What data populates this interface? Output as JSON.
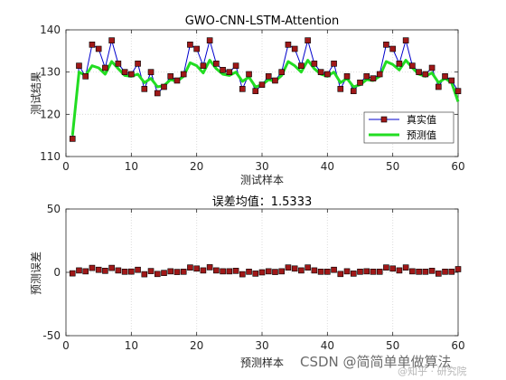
{
  "watermark": {
    "brand": "CSDN @简简单单做算法",
    "faint": "@知乎 · 研究院"
  },
  "chart_data": [
    {
      "type": "line",
      "title": "GWO-CNN-LSTM-Attention",
      "xlabel": "测试样本",
      "ylabel": "测试结果",
      "xlim": [
        0,
        60
      ],
      "ylim": [
        110,
        140
      ],
      "xticks": [
        0,
        10,
        20,
        30,
        40,
        50,
        60
      ],
      "yticks": [
        110,
        120,
        130,
        140
      ],
      "grid": true,
      "legend_position": "lower-right",
      "x": [
        1,
        2,
        3,
        4,
        5,
        6,
        7,
        8,
        9,
        10,
        11,
        12,
        13,
        14,
        15,
        16,
        17,
        18,
        19,
        20,
        21,
        22,
        23,
        24,
        25,
        26,
        27,
        28,
        29,
        30,
        31,
        32,
        33,
        34,
        35,
        36,
        37,
        38,
        39,
        40,
        41,
        42,
        43,
        44,
        45,
        46,
        47,
        48,
        49,
        50,
        51,
        52,
        53,
        54,
        55,
        56,
        57,
        58,
        59,
        60
      ],
      "series": [
        {
          "name": "真实值",
          "color": "#0000cc",
          "marker_face": "#a01818",
          "marker": "square",
          "values": [
            114.2,
            131.5,
            129.0,
            136.5,
            135.5,
            131.0,
            137.5,
            132.0,
            130.0,
            129.5,
            132.0,
            126.0,
            130.0,
            125.0,
            126.5,
            129.0,
            128.0,
            129.5,
            136.5,
            135.5,
            131.5,
            137.5,
            132.0,
            130.5,
            130.0,
            131.5,
            126.0,
            129.5,
            125.5,
            127.0,
            129.0,
            128.0,
            130.0,
            136.5,
            135.5,
            131.5,
            137.5,
            132.0,
            130.0,
            129.5,
            132.0,
            126.0,
            129.0,
            125.5,
            127.5,
            129.0,
            128.5,
            129.5,
            136.5,
            135.5,
            132.0,
            137.5,
            131.5,
            130.0,
            129.5,
            131.0,
            126.5,
            129.0,
            128.0,
            125.5
          ]
        },
        {
          "name": "预测值",
          "color": "#22dd22",
          "values": [
            115.0,
            130.0,
            129.2,
            131.5,
            131.0,
            129.5,
            132.5,
            130.8,
            129.2,
            129.0,
            129.5,
            127.5,
            128.5,
            126.5,
            126.8,
            128.2,
            127.8,
            129.0,
            132.2,
            131.5,
            129.8,
            132.8,
            130.8,
            129.5,
            129.2,
            130.0,
            127.8,
            128.8,
            126.5,
            127.0,
            128.2,
            127.8,
            129.2,
            132.5,
            131.5,
            130.0,
            132.8,
            130.8,
            129.5,
            129.0,
            130.0,
            127.5,
            128.5,
            126.5,
            127.0,
            128.2,
            128.0,
            129.0,
            132.5,
            131.8,
            130.5,
            132.8,
            131.0,
            129.5,
            129.0,
            129.8,
            127.5,
            128.5,
            127.5,
            123.0
          ]
        }
      ]
    },
    {
      "type": "scatter",
      "title": "误差均值：1.5333",
      "xlabel": "预测样本",
      "ylabel": "预测误差",
      "xlim": [
        0,
        60
      ],
      "ylim": [
        -50,
        50
      ],
      "xticks": [
        0,
        10,
        20,
        30,
        40,
        50,
        60
      ],
      "yticks": [
        -50,
        0,
        50
      ],
      "grid": true,
      "marker": "square",
      "marker_face": "#a01818",
      "x": [
        1,
        2,
        3,
        4,
        5,
        6,
        7,
        8,
        9,
        10,
        11,
        12,
        13,
        14,
        15,
        16,
        17,
        18,
        19,
        20,
        21,
        22,
        23,
        24,
        25,
        26,
        27,
        28,
        29,
        30,
        31,
        32,
        33,
        34,
        35,
        36,
        37,
        38,
        39,
        40,
        41,
        42,
        43,
        44,
        45,
        46,
        47,
        48,
        49,
        50,
        51,
        52,
        53,
        54,
        55,
        56,
        57,
        58,
        59,
        60
      ],
      "values": [
        -0.8,
        1.5,
        0.8,
        3.5,
        2.0,
        1.2,
        3.5,
        1.5,
        0.5,
        0.6,
        2.0,
        -1.5,
        1.0,
        -1.3,
        -0.5,
        0.8,
        0.3,
        0.5,
        3.8,
        3.0,
        1.5,
        4.0,
        1.5,
        0.8,
        0.8,
        1.2,
        -1.5,
        0.5,
        -1.0,
        0.0,
        0.8,
        0.3,
        0.8,
        3.8,
        3.0,
        1.5,
        3.8,
        1.5,
        0.5,
        0.5,
        2.0,
        -1.3,
        0.8,
        -1.0,
        0.5,
        0.8,
        0.5,
        0.5,
        3.8,
        3.0,
        1.5,
        3.8,
        0.8,
        0.5,
        0.5,
        1.2,
        -1.0,
        0.5,
        0.5,
        2.5
      ]
    }
  ]
}
